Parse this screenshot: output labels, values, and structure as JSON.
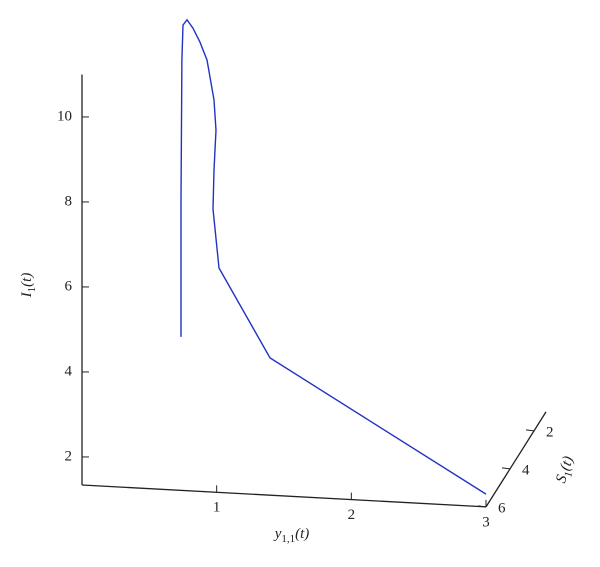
{
  "chart_data": {
    "type": "line3d",
    "x_label": {
      "base": "y",
      "sub": "1,1",
      "tail": "(t)"
    },
    "y_label": {
      "base": "S",
      "sub": "1",
      "tail": "(t)"
    },
    "z_label": {
      "base": "I",
      "sub": "1",
      "tail": "(t)"
    },
    "xlim": [
      0,
      3
    ],
    "xticks": [
      1,
      2,
      3
    ],
    "ylim": [
      1,
      6
    ],
    "yticks": [
      2,
      4,
      6
    ],
    "zlim": [
      1.34,
      11
    ],
    "zticks": [
      2,
      4,
      6,
      8,
      10
    ],
    "series": [
      {
        "color": "#2233c4",
        "x": [
          0.735,
          0.735,
          0.742,
          0.75,
          0.78,
          0.824,
          0.876,
          0.928,
          0.98,
          0.995,
          0.98,
          0.973,
          1.017,
          1.396,
          3.0
        ],
        "y": [
          6,
          6,
          6,
          6,
          6,
          6,
          6,
          6,
          6,
          6,
          6,
          6,
          6,
          6,
          6
        ],
        "z": [
          4.95,
          8.17,
          11.47,
          12.29,
          12.42,
          12.23,
          11.91,
          11.5,
          10.57,
          9.86,
          8.92,
          8.0,
          6.62,
          4.57,
          1.64
        ]
      }
    ]
  }
}
